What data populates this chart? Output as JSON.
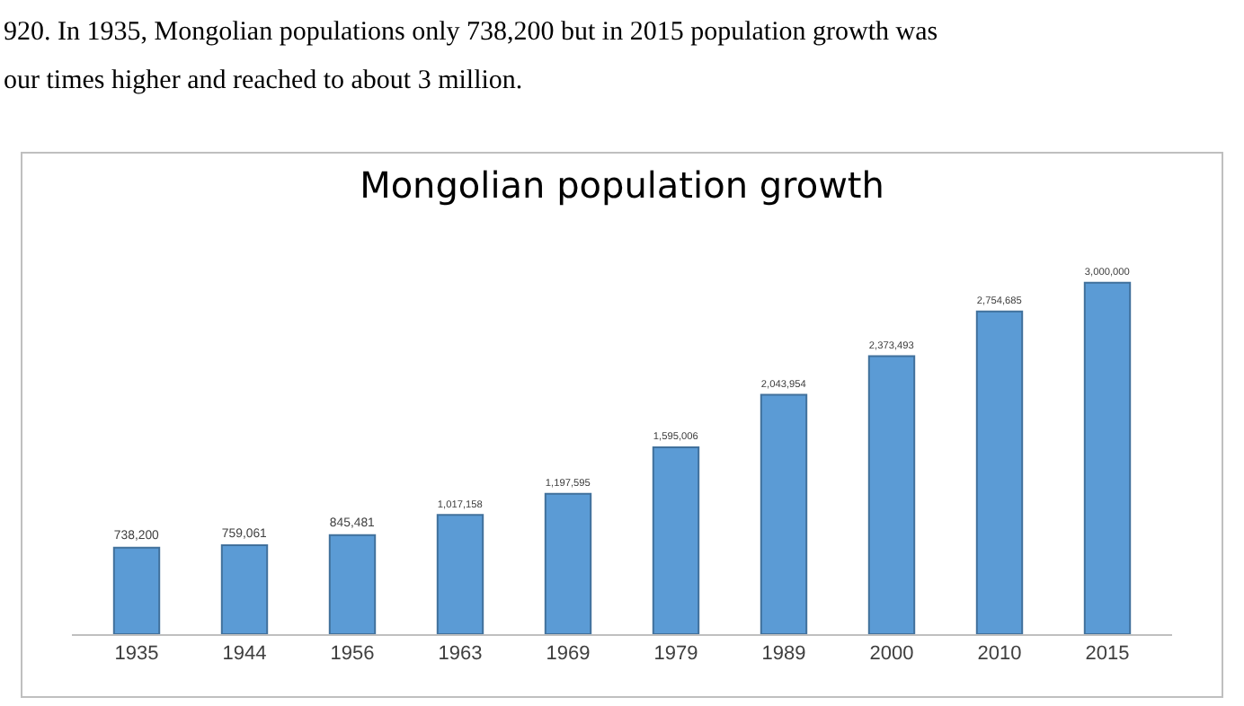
{
  "chart_data": {
    "type": "bar",
    "title": "Mongolian population growth",
    "annotations": [
      "920. In 1935, Mongolian populations only 738,200 but in 2015 population growth was",
      "our times higher and reached to about 3 million."
    ],
    "categories": [
      "1935",
      "1944",
      "1956",
      "1963",
      "1969",
      "1979",
      "1989",
      "2000",
      "2010",
      "2015"
    ],
    "values": [
      738200,
      759061,
      845481,
      1017158,
      1197595,
      1595006,
      2043954,
      2373493,
      2754685,
      3000000
    ],
    "value_labels": [
      "738,200",
      "759,061",
      "845,481",
      "1,017,158",
      "1,197,595",
      "1,595,006",
      "2,043,954",
      "2,373,493",
      "2,754,685",
      "3,000,000"
    ],
    "color": "#5b9bd5",
    "tick_labels": "x"
  }
}
